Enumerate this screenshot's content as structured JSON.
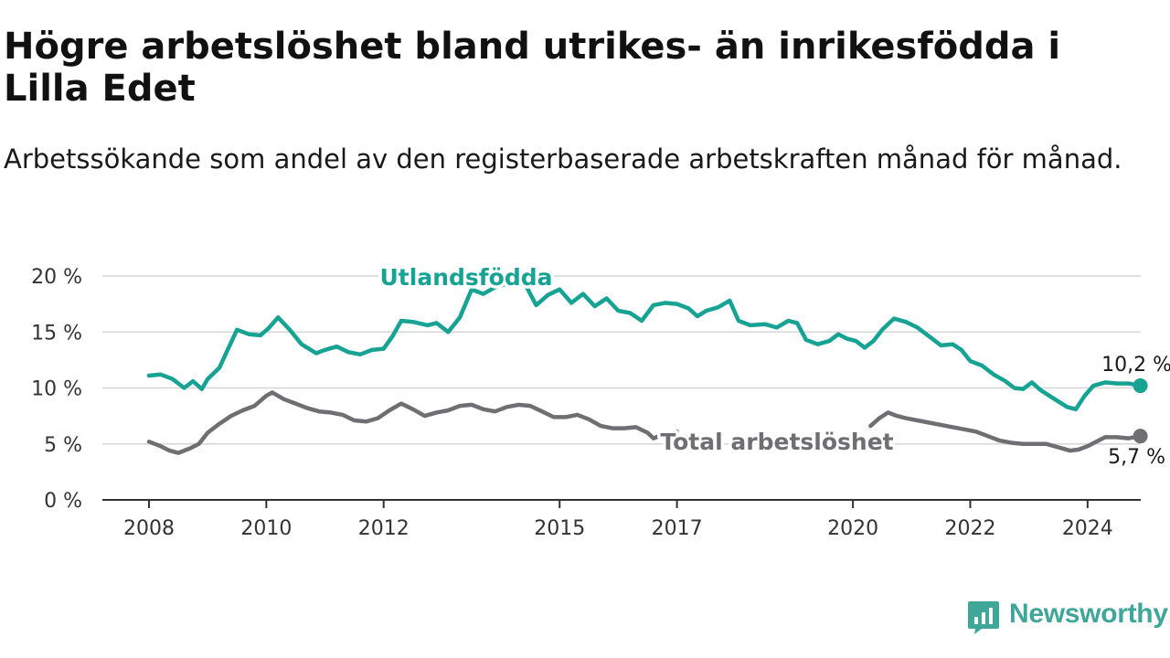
{
  "title": "Högre arbetslöshet bland utrikes- än inrikesfödda i Lilla Edet",
  "subtitle": "Arbetssökande som andel av den registerbaserade arbetskraften månad för månad.",
  "brand": {
    "name": "Newsworthy",
    "icon": "newsworthy-logo-icon",
    "color": "#3fa69a"
  },
  "chart_data": {
    "type": "line",
    "xlabel": "",
    "ylabel": "",
    "xlim": [
      2008.0,
      2025.0
    ],
    "ylim": [
      0,
      20
    ],
    "y_ticks": [
      0,
      5,
      10,
      15,
      20
    ],
    "y_tick_labels": [
      "0 %",
      "5 %",
      "10 %",
      "15 %",
      "20 %"
    ],
    "x_ticks": [
      2008,
      2010,
      2012,
      2015,
      2017,
      2020,
      2022,
      2024
    ],
    "x_tick_labels": [
      "2008",
      "2010",
      "2012",
      "2015",
      "2017",
      "2020",
      "2022",
      "2024"
    ],
    "grid": "horizontal",
    "series": [
      {
        "name": "Utlandsfödda",
        "color": "#16a394",
        "end_label": "10,2 %",
        "points": [
          [
            2008.0,
            11.1
          ],
          [
            2008.2,
            11.2
          ],
          [
            2008.4,
            10.8
          ],
          [
            2008.6,
            10.0
          ],
          [
            2008.75,
            10.6
          ],
          [
            2008.9,
            9.9
          ],
          [
            2009.0,
            10.8
          ],
          [
            2009.2,
            11.8
          ],
          [
            2009.35,
            13.5
          ],
          [
            2009.5,
            15.2
          ],
          [
            2009.7,
            14.8
          ],
          [
            2009.9,
            14.7
          ],
          [
            2010.05,
            15.4
          ],
          [
            2010.2,
            16.3
          ],
          [
            2010.4,
            15.2
          ],
          [
            2010.6,
            13.9
          ],
          [
            2010.85,
            13.1
          ],
          [
            2011.0,
            13.4
          ],
          [
            2011.2,
            13.7
          ],
          [
            2011.4,
            13.2
          ],
          [
            2011.6,
            13.0
          ],
          [
            2011.8,
            13.4
          ],
          [
            2012.0,
            13.5
          ],
          [
            2012.15,
            14.6
          ],
          [
            2012.3,
            16.0
          ],
          [
            2012.5,
            15.9
          ],
          [
            2012.75,
            15.6
          ],
          [
            2012.9,
            15.8
          ],
          [
            2013.1,
            15.0
          ],
          [
            2013.3,
            16.3
          ],
          [
            2013.5,
            18.8
          ],
          [
            2013.7,
            18.4
          ],
          [
            2013.9,
            19.0
          ],
          [
            2014.1,
            19.3
          ],
          [
            2014.4,
            19.4
          ],
          [
            2014.6,
            17.4
          ],
          [
            2014.8,
            18.3
          ],
          [
            2015.0,
            18.8
          ],
          [
            2015.2,
            17.6
          ],
          [
            2015.4,
            18.4
          ],
          [
            2015.6,
            17.3
          ],
          [
            2015.8,
            18.0
          ],
          [
            2016.0,
            16.9
          ],
          [
            2016.2,
            16.7
          ],
          [
            2016.4,
            16.0
          ],
          [
            2016.6,
            17.4
          ],
          [
            2016.8,
            17.6
          ],
          [
            2017.0,
            17.5
          ],
          [
            2017.2,
            17.1
          ],
          [
            2017.35,
            16.4
          ],
          [
            2017.5,
            16.9
          ],
          [
            2017.7,
            17.2
          ],
          [
            2017.9,
            17.8
          ],
          [
            2018.05,
            16.0
          ],
          [
            2018.25,
            15.6
          ],
          [
            2018.5,
            15.7
          ],
          [
            2018.7,
            15.4
          ],
          [
            2018.9,
            16.0
          ],
          [
            2019.05,
            15.8
          ],
          [
            2019.2,
            14.3
          ],
          [
            2019.4,
            13.9
          ],
          [
            2019.6,
            14.2
          ],
          [
            2019.75,
            14.8
          ],
          [
            2019.9,
            14.4
          ],
          [
            2020.05,
            14.2
          ],
          [
            2020.2,
            13.6
          ],
          [
            2020.35,
            14.2
          ],
          [
            2020.5,
            15.2
          ],
          [
            2020.7,
            16.2
          ],
          [
            2020.9,
            15.9
          ],
          [
            2021.1,
            15.4
          ],
          [
            2021.3,
            14.6
          ],
          [
            2021.5,
            13.8
          ],
          [
            2021.7,
            13.9
          ],
          [
            2021.85,
            13.4
          ],
          [
            2022.0,
            12.4
          ],
          [
            2022.2,
            12.0
          ],
          [
            2022.4,
            11.2
          ],
          [
            2022.6,
            10.6
          ],
          [
            2022.75,
            10.0
          ],
          [
            2022.9,
            9.9
          ],
          [
            2023.05,
            10.5
          ],
          [
            2023.2,
            9.8
          ],
          [
            2023.35,
            9.3
          ],
          [
            2023.5,
            8.8
          ],
          [
            2023.65,
            8.3
          ],
          [
            2023.8,
            8.1
          ],
          [
            2023.95,
            9.3
          ],
          [
            2024.1,
            10.2
          ],
          [
            2024.3,
            10.5
          ],
          [
            2024.5,
            10.4
          ],
          [
            2024.7,
            10.4
          ],
          [
            2024.9,
            10.2
          ]
        ]
      },
      {
        "name": "Total arbetslöshet",
        "color": "#6e6e73",
        "end_label": "5,7 %",
        "points": [
          [
            2008.0,
            5.2
          ],
          [
            2008.2,
            4.8
          ],
          [
            2008.35,
            4.4
          ],
          [
            2008.5,
            4.2
          ],
          [
            2008.7,
            4.6
          ],
          [
            2008.85,
            5.0
          ],
          [
            2009.0,
            6.0
          ],
          [
            2009.2,
            6.8
          ],
          [
            2009.4,
            7.5
          ],
          [
            2009.6,
            8.0
          ],
          [
            2009.8,
            8.4
          ],
          [
            2010.0,
            9.3
          ],
          [
            2010.1,
            9.6
          ],
          [
            2010.3,
            9.0
          ],
          [
            2010.5,
            8.6
          ],
          [
            2010.7,
            8.2
          ],
          [
            2010.9,
            7.9
          ],
          [
            2011.1,
            7.8
          ],
          [
            2011.3,
            7.6
          ],
          [
            2011.5,
            7.1
          ],
          [
            2011.7,
            7.0
          ],
          [
            2011.9,
            7.3
          ],
          [
            2012.1,
            8.0
          ],
          [
            2012.3,
            8.6
          ],
          [
            2012.5,
            8.1
          ],
          [
            2012.7,
            7.5
          ],
          [
            2012.9,
            7.8
          ],
          [
            2013.1,
            8.0
          ],
          [
            2013.3,
            8.4
          ],
          [
            2013.5,
            8.5
          ],
          [
            2013.7,
            8.1
          ],
          [
            2013.9,
            7.9
          ],
          [
            2014.1,
            8.3
          ],
          [
            2014.3,
            8.5
          ],
          [
            2014.5,
            8.4
          ],
          [
            2014.7,
            7.9
          ],
          [
            2014.9,
            7.4
          ],
          [
            2015.1,
            7.4
          ],
          [
            2015.3,
            7.6
          ],
          [
            2015.5,
            7.2
          ],
          [
            2015.7,
            6.6
          ],
          [
            2015.9,
            6.4
          ],
          [
            2016.1,
            6.4
          ],
          [
            2016.3,
            6.5
          ],
          [
            2016.5,
            6.0
          ],
          [
            2016.6,
            5.5
          ],
          [
            2016.75,
            5.8
          ],
          [
            2016.9,
            5.9
          ],
          [
            2017.0,
            6.1
          ],
          null,
          [
            2020.3,
            6.6
          ],
          [
            2020.45,
            7.3
          ],
          [
            2020.6,
            7.8
          ],
          [
            2020.75,
            7.5
          ],
          [
            2020.9,
            7.3
          ],
          [
            2021.1,
            7.1
          ],
          [
            2021.3,
            6.9
          ],
          [
            2021.5,
            6.7
          ],
          [
            2021.7,
            6.5
          ],
          [
            2021.9,
            6.3
          ],
          [
            2022.1,
            6.1
          ],
          [
            2022.3,
            5.7
          ],
          [
            2022.5,
            5.3
          ],
          [
            2022.7,
            5.1
          ],
          [
            2022.9,
            5.0
          ],
          [
            2023.1,
            5.0
          ],
          [
            2023.3,
            5.0
          ],
          [
            2023.5,
            4.7
          ],
          [
            2023.7,
            4.4
          ],
          [
            2023.85,
            4.5
          ],
          [
            2024.0,
            4.8
          ],
          [
            2024.15,
            5.2
          ],
          [
            2024.3,
            5.6
          ],
          [
            2024.5,
            5.6
          ],
          [
            2024.7,
            5.5
          ],
          [
            2024.9,
            5.7
          ]
        ]
      }
    ]
  }
}
